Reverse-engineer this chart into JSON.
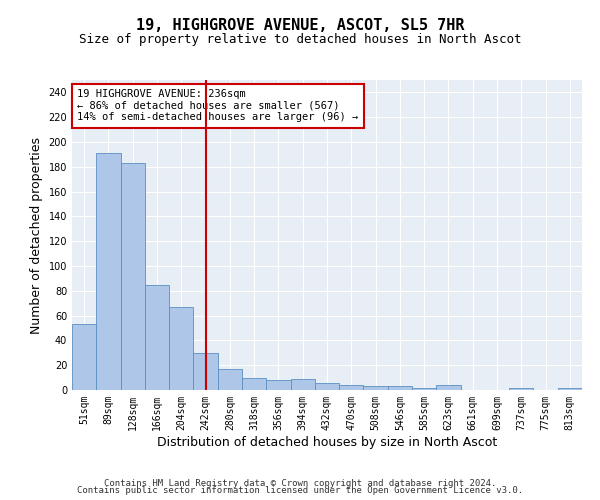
{
  "title": "19, HIGHGROVE AVENUE, ASCOT, SL5 7HR",
  "subtitle": "Size of property relative to detached houses in North Ascot",
  "xlabel": "Distribution of detached houses by size in North Ascot",
  "ylabel": "Number of detached properties",
  "categories": [
    "51sqm",
    "89sqm",
    "128sqm",
    "166sqm",
    "204sqm",
    "242sqm",
    "280sqm",
    "318sqm",
    "356sqm",
    "394sqm",
    "432sqm",
    "470sqm",
    "508sqm",
    "546sqm",
    "585sqm",
    "623sqm",
    "661sqm",
    "699sqm",
    "737sqm",
    "775sqm",
    "813sqm"
  ],
  "values": [
    53,
    191,
    183,
    85,
    67,
    30,
    17,
    10,
    8,
    9,
    6,
    4,
    3,
    3,
    2,
    4,
    0,
    0,
    2,
    0,
    2
  ],
  "bar_color": "#aec6e8",
  "bar_edge_color": "#5a8fc2",
  "vline_index": 5,
  "vline_color": "#cc0000",
  "annotation_text": "19 HIGHGROVE AVENUE: 236sqm\n← 86% of detached houses are smaller (567)\n14% of semi-detached houses are larger (96) →",
  "annotation_box_color": "#ffffff",
  "annotation_box_edge_color": "#cc0000",
  "ylim": [
    0,
    250
  ],
  "yticks": [
    0,
    20,
    40,
    60,
    80,
    100,
    120,
    140,
    160,
    180,
    200,
    220,
    240
  ],
  "background_color": "#e8eef5",
  "footer1": "Contains HM Land Registry data © Crown copyright and database right 2024.",
  "footer2": "Contains public sector information licensed under the Open Government Licence v3.0.",
  "title_fontsize": 11,
  "subtitle_fontsize": 9,
  "ylabel_fontsize": 9,
  "xlabel_fontsize": 9,
  "tick_fontsize": 7,
  "annotation_fontsize": 7.5,
  "footer_fontsize": 6.5
}
